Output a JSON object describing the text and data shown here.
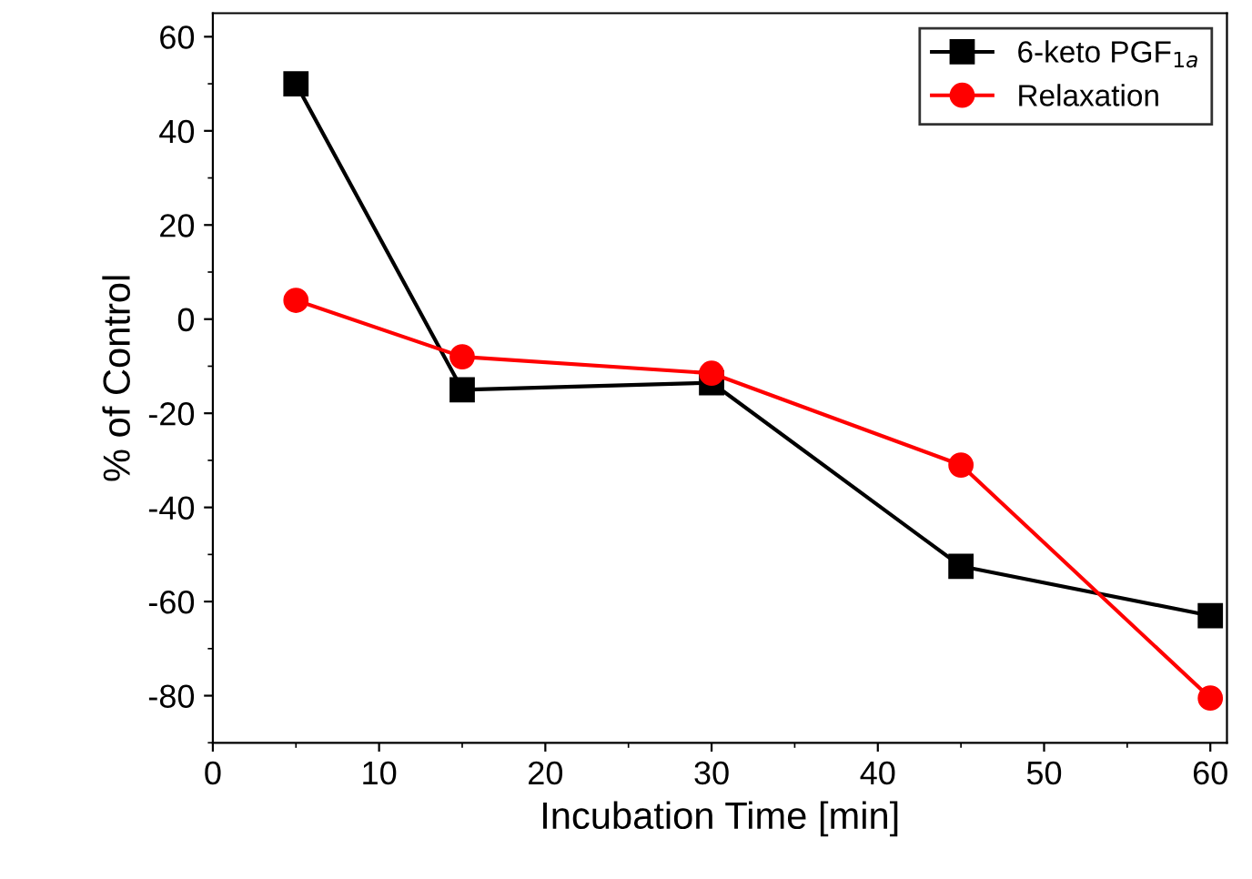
{
  "chart_data": {
    "type": "line",
    "xlabel": "Incubation Time [min]",
    "ylabel": "% of Control",
    "x": [
      5,
      15,
      30,
      45,
      60
    ],
    "series": [
      {
        "name": "6-keto PGF$_{1a}$",
        "color": "#000000",
        "values": [
          50,
          -15,
          -13.5,
          -52.5,
          -63
        ],
        "marker": "square"
      },
      {
        "name": "Relaxation",
        "color": "#ff0000",
        "values": [
          4,
          -8,
          -11.5,
          -31,
          -80.5
        ],
        "marker": "circle"
      }
    ],
    "xlim": [
      0,
      61
    ],
    "ylim": [
      -90,
      65
    ],
    "xticks": [
      0,
      10,
      20,
      30,
      40,
      50,
      60
    ],
    "yticks": [
      -80,
      -60,
      -40,
      -20,
      0,
      20,
      40,
      60
    ],
    "grid": false,
    "legend": "top right",
    "line_style": "solid"
  }
}
